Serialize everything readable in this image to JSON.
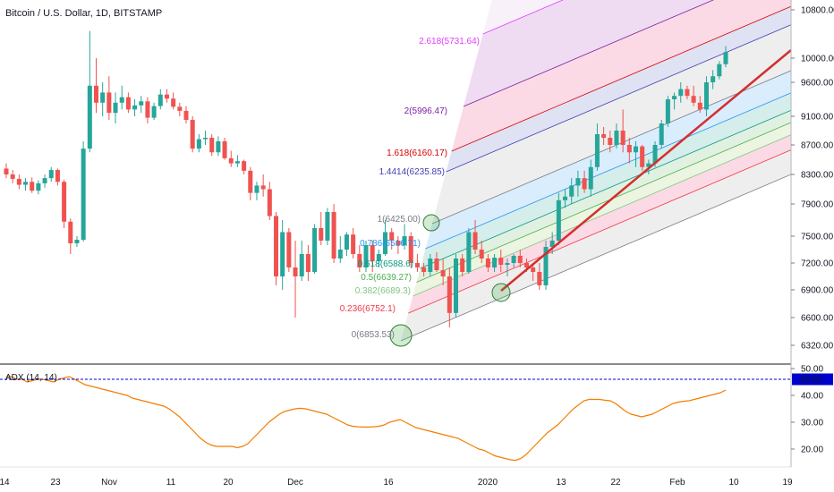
{
  "header": {
    "symbol_title": "Bitcoin / U.S. Dollar, 1D, BITSTAMP"
  },
  "colors": {
    "up": "#26a69a",
    "down": "#ef5350",
    "trendline": "#d32f2f",
    "adx_line": "#f57c00",
    "adx_marker": "#0000cc"
  },
  "chart_data": {
    "type": "candlestick",
    "title": "Bitcoin / U.S. Dollar, 1D, BITSTAMP",
    "price_axis_ticks": [
      "10800.00",
      "10000.00",
      "9600.00",
      "9100.00",
      "8700.00",
      "8300.00",
      "7900.00",
      "7500.00",
      "7200.00",
      "6900.00",
      "6600.00",
      "6320.00"
    ],
    "time_axis_ticks": [
      "14",
      "23",
      "Nov",
      "11",
      "20",
      "Dec",
      "16",
      "2020",
      "13",
      "22",
      "Feb",
      "10",
      "19"
    ],
    "candles_ohlc": [
      [
        8380,
        8450,
        8250,
        8300
      ],
      [
        8300,
        8360,
        8180,
        8240
      ],
      [
        8240,
        8300,
        8100,
        8160
      ],
      [
        8160,
        8250,
        8080,
        8200
      ],
      [
        8200,
        8260,
        8050,
        8080
      ],
      [
        8080,
        8220,
        8030,
        8180
      ],
      [
        8180,
        8300,
        8120,
        8250
      ],
      [
        8250,
        8400,
        8200,
        8360
      ],
      [
        8360,
        8380,
        8150,
        8200
      ],
      [
        8200,
        8230,
        7600,
        7680
      ],
      [
        7680,
        7720,
        7300,
        7420
      ],
      [
        7420,
        7500,
        7380,
        7460
      ],
      [
        7460,
        8750,
        7440,
        8650
      ],
      [
        8650,
        10450,
        8600,
        9550
      ],
      [
        9550,
        10000,
        9150,
        9300
      ],
      [
        9300,
        9600,
        9100,
        9450
      ],
      [
        9450,
        9700,
        9050,
        9150
      ],
      [
        9150,
        9450,
        9000,
        9300
      ],
      [
        9300,
        9550,
        9200,
        9380
      ],
      [
        9380,
        9450,
        9150,
        9200
      ],
      [
        9200,
        9350,
        9100,
        9260
      ],
      [
        9260,
        9400,
        9150,
        9320
      ],
      [
        9320,
        9380,
        9000,
        9080
      ],
      [
        9080,
        9300,
        9050,
        9250
      ],
      [
        9250,
        9500,
        9200,
        9420
      ],
      [
        9420,
        9500,
        9300,
        9360
      ],
      [
        9360,
        9450,
        9200,
        9240
      ],
      [
        9240,
        9300,
        9100,
        9180
      ],
      [
        9180,
        9250,
        9000,
        9050
      ],
      [
        9050,
        9100,
        8600,
        8650
      ],
      [
        8650,
        8850,
        8600,
        8780
      ],
      [
        8780,
        8900,
        8700,
        8800
      ],
      [
        8800,
        8850,
        8550,
        8600
      ],
      [
        8600,
        8820,
        8550,
        8750
      ],
      [
        8750,
        8800,
        8500,
        8520
      ],
      [
        8520,
        8620,
        8400,
        8450
      ],
      [
        8450,
        8560,
        8400,
        8480
      ],
      [
        8480,
        8500,
        8300,
        8350
      ],
      [
        8350,
        8400,
        7950,
        8050
      ],
      [
        8050,
        8200,
        7950,
        8150
      ],
      [
        8150,
        8300,
        8000,
        8100
      ],
      [
        8100,
        8200,
        7700,
        7750
      ],
      [
        7750,
        7800,
        6950,
        7050
      ],
      [
        7050,
        7700,
        6900,
        7550
      ],
      [
        7550,
        7600,
        7100,
        7150
      ],
      [
        7150,
        7450,
        6600,
        7050
      ],
      [
        7050,
        7450,
        7000,
        7300
      ],
      [
        7300,
        7400,
        7000,
        7100
      ],
      [
        7100,
        7650,
        7080,
        7600
      ],
      [
        7600,
        7800,
        7400,
        7450
      ],
      [
        7450,
        7850,
        7400,
        7800
      ],
      [
        7800,
        7900,
        7200,
        7250
      ],
      [
        7250,
        7500,
        7200,
        7350
      ],
      [
        7350,
        7550,
        7280,
        7520
      ],
      [
        7520,
        7600,
        7250,
        7300
      ],
      [
        7300,
        7400,
        7100,
        7150
      ],
      [
        7150,
        7450,
        7100,
        7400
      ],
      [
        7400,
        7450,
        7100,
        7220
      ],
      [
        7220,
        7350,
        7150,
        7300
      ],
      [
        7300,
        7700,
        7280,
        7550
      ],
      [
        7550,
        7600,
        7350,
        7450
      ],
      [
        7450,
        7500,
        7300,
        7400
      ],
      [
        7400,
        7650,
        7350,
        7500
      ],
      [
        7500,
        7550,
        7150,
        7200
      ],
      [
        7200,
        7300,
        7100,
        7150
      ],
      [
        7150,
        7200,
        7050,
        7100
      ],
      [
        7100,
        7300,
        7050,
        7250
      ],
      [
        7250,
        7320,
        7100,
        7120
      ],
      [
        7120,
        7250,
        6950,
        7050
      ],
      [
        7050,
        7150,
        6500,
        6650
      ],
      [
        6650,
        7300,
        6600,
        7250
      ],
      [
        7250,
        7300,
        7050,
        7100
      ],
      [
        7100,
        7600,
        7080,
        7550
      ],
      [
        7550,
        7700,
        7300,
        7350
      ],
      [
        7350,
        7450,
        7200,
        7250
      ],
      [
        7250,
        7300,
        7100,
        7150
      ],
      [
        7150,
        7300,
        7100,
        7260
      ],
      [
        7260,
        7350,
        7100,
        7180
      ],
      [
        7180,
        7250,
        7050,
        7200
      ],
      [
        7200,
        7300,
        7150,
        7280
      ],
      [
        7280,
        7350,
        7150,
        7200
      ],
      [
        7200,
        7250,
        7100,
        7150
      ],
      [
        7150,
        7200,
        7000,
        7100
      ],
      [
        7100,
        7200,
        6900,
        6950
      ],
      [
        6950,
        7450,
        6900,
        7380
      ],
      [
        7380,
        7550,
        7300,
        7450
      ],
      [
        7450,
        8050,
        7400,
        7950
      ],
      [
        7950,
        8100,
        7850,
        8000
      ],
      [
        8000,
        8250,
        7900,
        8150
      ],
      [
        8150,
        8350,
        8000,
        8250
      ],
      [
        8250,
        8350,
        8050,
        8100
      ],
      [
        8100,
        8500,
        8000,
        8400
      ],
      [
        8400,
        9000,
        8350,
        8850
      ],
      [
        8850,
        8950,
        8700,
        8800
      ],
      [
        8800,
        8900,
        8600,
        8700
      ],
      [
        8700,
        9000,
        8650,
        8900
      ],
      [
        8900,
        9200,
        8600,
        8700
      ],
      [
        8700,
        8800,
        8450,
        8600
      ],
      [
        8600,
        8750,
        8400,
        8680
      ],
      [
        8680,
        8700,
        8350,
        8400
      ],
      [
        8400,
        8500,
        8300,
        8450
      ],
      [
        8450,
        8750,
        8400,
        8700
      ],
      [
        8700,
        9050,
        8650,
        9000
      ],
      [
        9000,
        9400,
        8950,
        9350
      ],
      [
        9350,
        9450,
        9200,
        9400
      ],
      [
        9400,
        9600,
        9300,
        9500
      ],
      [
        9500,
        9550,
        9350,
        9400
      ],
      [
        9400,
        9550,
        9250,
        9300
      ],
      [
        9300,
        9400,
        9150,
        9200
      ],
      [
        9200,
        9700,
        9100,
        9600
      ],
      [
        9600,
        9800,
        9500,
        9700
      ],
      [
        9700,
        9950,
        9650,
        9900
      ],
      [
        9900,
        10200,
        9850,
        10100
      ]
    ],
    "fib_channel_levels": [
      {
        "label": "0(6853.53)",
        "color": "#787b86"
      },
      {
        "label": "0.236(6752.1)",
        "color": "#f23645"
      },
      {
        "label": "0.382(6689.3)",
        "color": "#81c784"
      },
      {
        "label": "0.5(6639.27)",
        "color": "#4caf50"
      },
      {
        "label": "0.618(6588.6)",
        "color": "#089981"
      },
      {
        "label": "0.786(6516.71)",
        "color": "#2196f3"
      },
      {
        "label": "1(6425.00)",
        "color": "#787b86"
      },
      {
        "label": "1.4414(6235.85)",
        "color": "#3f3fb2"
      },
      {
        "label": "1.618(6160.17)",
        "color": "#d50000"
      },
      {
        "label": "2(5996.47)",
        "color": "#7b1fa2"
      },
      {
        "label": "2.618(5731.64)",
        "color": "#e040fb"
      }
    ],
    "indicator": {
      "name": "ADX (14, 14)",
      "current_value": "45.81",
      "axis_ticks": [
        "50.00",
        "40.00",
        "30.00",
        "20.00"
      ],
      "values": [
        47,
        47,
        46,
        46,
        45,
        45.5,
        46,
        46,
        45.5,
        45,
        46,
        46.5,
        47,
        46,
        45,
        44,
        43.5,
        43,
        42.5,
        42,
        41.5,
        41,
        40.5,
        40,
        39,
        38.5,
        38,
        37.5,
        37,
        36.5,
        36,
        35,
        33.5,
        32,
        30,
        28,
        26,
        24,
        22.5,
        21.5,
        21,
        21,
        21,
        21,
        20.5,
        21,
        22,
        24,
        26,
        28,
        30,
        31.5,
        33,
        34,
        34.5,
        35,
        35.2,
        35,
        34.5,
        34,
        33.5,
        33,
        32,
        31,
        30,
        29,
        28.5,
        28.3,
        28.2,
        28.2,
        28.3,
        28.5,
        29,
        30,
        30.5,
        31,
        30,
        29,
        28,
        27.5,
        27,
        26.5,
        26,
        25.5,
        25,
        24.5,
        24,
        23,
        22,
        21,
        20,
        19.5,
        18.5,
        17.5,
        17,
        16.5,
        16,
        15.8,
        16.5,
        18,
        20,
        22,
        24,
        26,
        27.5,
        29,
        31,
        33,
        35,
        36.5,
        38,
        38.5,
        38.5,
        38.5,
        38.2,
        38,
        37,
        35.5,
        34,
        33,
        32.5,
        32,
        32.5,
        33,
        34,
        35,
        36,
        37,
        37.5,
        37.8,
        38,
        38.5,
        39,
        39.5,
        40,
        40.5,
        41,
        42
      ]
    },
    "trendline_label": ""
  }
}
